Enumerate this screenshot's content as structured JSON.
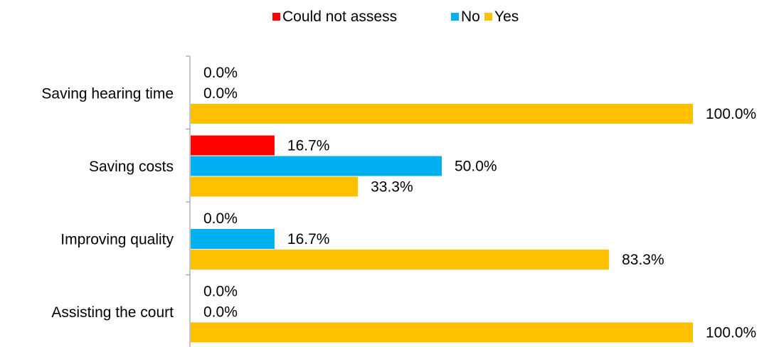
{
  "chart_data": {
    "type": "bar",
    "orientation": "horizontal",
    "categories": [
      "Saving hearing time",
      "Saving costs",
      "Improving quality",
      "Assisting the court"
    ],
    "series": [
      {
        "name": "Could not assess",
        "color": "#FF0000",
        "values": [
          0.0,
          16.7,
          0.0,
          0.0
        ],
        "labels": [
          "0.0%",
          "16.7%",
          "0.0%",
          "0.0%"
        ]
      },
      {
        "name": "No",
        "color": "#00B0F0",
        "values": [
          0.0,
          50.0,
          16.7,
          0.0
        ],
        "labels": [
          "0.0%",
          "50.0%",
          "16.7%",
          "0.0%"
        ]
      },
      {
        "name": "Yes",
        "color": "#FFC000",
        "values": [
          100.0,
          33.3,
          83.3,
          100.0
        ],
        "labels": [
          "100.0%",
          "33.3%",
          "83.3%",
          "100.0%"
        ]
      }
    ],
    "xlim": [
      0,
      100
    ],
    "legend_position": "top",
    "grid": false
  }
}
